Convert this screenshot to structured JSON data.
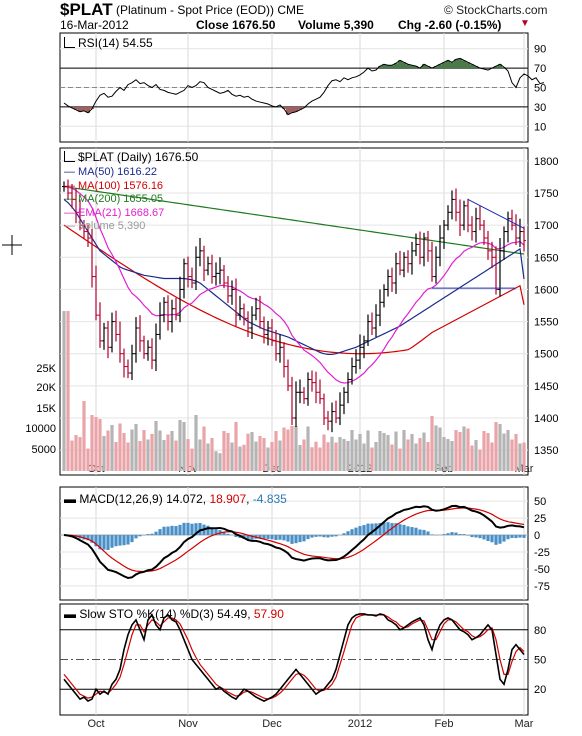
{
  "header": {
    "symbol": "$PLAT",
    "name": "(Platinum - Spot Price (EOD)) CME",
    "copyright": "© StockCharts.com",
    "date": "16-Mar-2012",
    "close_label": "Close 1676.50",
    "volume_label": "Volume 5,390",
    "chg_label": "Chg -2.60 (-0.15%)",
    "chg_arrow": "▼"
  },
  "colors": {
    "up_bar": "#000000",
    "down_bar": "#b0002a",
    "ma50": "#1a2a8c",
    "ma100": "#d40000",
    "ma200": "#1e7a1e",
    "ema21": "#e020d0",
    "vol_up": "#b4b4b4",
    "vol_down": "#e8a4a8",
    "macd_hist": "#4a90c8",
    "rsi_fill": "#4a7a4a",
    "rsi_low_fill": "#a06060",
    "trend": "#1a2ab4"
  },
  "x_axis": {
    "months": [
      "Oct",
      "Nov",
      "Dec",
      "2012",
      "Feb",
      "Mar"
    ],
    "month_start_index": [
      8,
      31,
      52,
      74,
      95,
      115
    ]
  },
  "chart_data": [
    {
      "type": "line",
      "panel": "rsi",
      "title": "RSI(14) 54.55",
      "ylim": [
        0,
        100
      ],
      "y_ticks": [
        10,
        30,
        50,
        70,
        90
      ],
      "reference_lines": [
        30,
        50,
        70
      ],
      "values": [
        34,
        31,
        29,
        27,
        25,
        26,
        24,
        28,
        36,
        42,
        44,
        40,
        41,
        46,
        50,
        47,
        53,
        55,
        58,
        54,
        55,
        52,
        50,
        53,
        48,
        47,
        45,
        44,
        43,
        45,
        47,
        52,
        50,
        52,
        56,
        55,
        50,
        48,
        46,
        44,
        45,
        47,
        43,
        41,
        42,
        40,
        41,
        38,
        36,
        35,
        34,
        33,
        31,
        30,
        32,
        28,
        22,
        24,
        25,
        27,
        29,
        33,
        36,
        38,
        40,
        45,
        52,
        57,
        58,
        56,
        60,
        58,
        60,
        61,
        63,
        66,
        70,
        67,
        68,
        72,
        74,
        73,
        73,
        75,
        78,
        76,
        74,
        73,
        72,
        70,
        74,
        72,
        70,
        72,
        74,
        76,
        78,
        76,
        79,
        80,
        78,
        76,
        74,
        72,
        70,
        69,
        68,
        70,
        72,
        74,
        71,
        67,
        55,
        50,
        60,
        64,
        62,
        58,
        60,
        54,
        55
      ]
    },
    {
      "type": "candlestick",
      "panel": "price",
      "title": "$PLAT (Daily) 1676.50",
      "ylim": [
        1330,
        1820
      ],
      "y_ticks": [
        1350,
        1400,
        1450,
        1500,
        1550,
        1600,
        1650,
        1700,
        1750,
        1800
      ],
      "legend": [
        {
          "label": "MA(50) 1616.22",
          "color": "#1a2a8c"
        },
        {
          "label": "MA(100) 1576.16",
          "color": "#d40000"
        },
        {
          "label": "MA(200) 1655.05",
          "color": "#1e7a1e"
        },
        {
          "label": "EMA(21) 1668.67",
          "color": "#e020d0"
        },
        {
          "label": "Volume 5,390",
          "color": "#999999"
        }
      ],
      "close": [
        1760,
        1750,
        1740,
        1720,
        1700,
        1690,
        1680,
        1620,
        1560,
        1520,
        1540,
        1510,
        1550,
        1530,
        1500,
        1480,
        1470,
        1500,
        1540,
        1520,
        1500,
        1510,
        1490,
        1530,
        1560,
        1580,
        1550,
        1570,
        1560,
        1600,
        1640,
        1620,
        1610,
        1650,
        1660,
        1630,
        1640,
        1620,
        1625,
        1630,
        1610,
        1590,
        1600,
        1560,
        1570,
        1555,
        1540,
        1560,
        1570,
        1550,
        1530,
        1540,
        1520,
        1500,
        1510,
        1480,
        1450,
        1400,
        1440,
        1440,
        1430,
        1460,
        1455,
        1440,
        1430,
        1400,
        1395,
        1410,
        1400,
        1420,
        1440,
        1460,
        1480,
        1490,
        1510,
        1520,
        1550,
        1540,
        1560,
        1580,
        1600,
        1620,
        1610,
        1640,
        1630,
        1650,
        1640,
        1660,
        1670,
        1650,
        1680,
        1660,
        1620,
        1650,
        1680,
        1700,
        1720,
        1740,
        1720,
        1700,
        1730,
        1700,
        1690,
        1710,
        1700,
        1680,
        1660,
        1650,
        1600,
        1660,
        1690,
        1710,
        1700,
        1680,
        1690,
        1676
      ],
      "ma50": [
        1740,
        1735,
        1728,
        1720,
        1710,
        1700,
        1690,
        1680,
        1670,
        1660,
        1655,
        1650,
        1645,
        1640,
        1635,
        1632,
        1630,
        1628,
        1626,
        1624,
        1622,
        1621,
        1620,
        1619,
        1618,
        1617,
        1617,
        1617,
        1617,
        1617,
        1617,
        1616,
        1615,
        1613,
        1610,
        1605,
        1600,
        1595,
        1590,
        1585,
        1580,
        1575,
        1570,
        1565,
        1560,
        1555,
        1550,
        1547,
        1544,
        1541,
        1538,
        1536,
        1534,
        1532,
        1530,
        1528,
        1526,
        1523,
        1520,
        1517,
        1514,
        1511,
        1508,
        1505,
        1502,
        1500,
        1499,
        1499,
        1500,
        1502,
        1504,
        1506,
        1508,
        1510,
        1513,
        1516,
        1519,
        1522,
        1525,
        1528,
        1531,
        1534,
        1537,
        1540,
        1543,
        1547,
        1551,
        1555,
        1559,
        1563,
        1567,
        1571,
        1575,
        1579,
        1583,
        1587,
        1591,
        1595,
        1599,
        1603,
        1607,
        1611,
        1615,
        1619,
        1623,
        1627,
        1631,
        1635,
        1639,
        1643,
        1647,
        1651,
        1655,
        1659,
        1663,
        1616
      ]
    }
  ],
  "price_panel_extra": {
    "volume_ticks": [
      "25K",
      "20K",
      "15K",
      "10000",
      "5000"
    ],
    "ma50_last": 1616.22,
    "ma100_last": 1576.16,
    "ma200_last": 1655.05,
    "ema21_last": 1668.67
  },
  "macd": {
    "title_prefix": "MACD(12,26,9)",
    "macd_value": "14.072",
    "signal_value": "18.907",
    "hist_value": "-4.835",
    "ylim": [
      -90,
      65
    ],
    "y_ticks": [
      50,
      25,
      0,
      -25,
      -50,
      -75
    ]
  },
  "stoch": {
    "title_prefix": "Slow STO %K(14) %D(3)",
    "k_value": "54.49",
    "d_value": "57.90",
    "ylim": [
      0,
      100
    ],
    "y_ticks": [
      20,
      50,
      80
    ],
    "k": [
      30,
      25,
      20,
      15,
      10,
      12,
      8,
      10,
      20,
      15,
      18,
      15,
      25,
      30,
      40,
      60,
      75,
      85,
      90,
      80,
      70,
      90,
      95,
      85,
      80,
      92,
      95,
      90,
      88,
      80,
      70,
      60,
      50,
      45,
      40,
      35,
      30,
      25,
      20,
      22,
      18,
      15,
      12,
      10,
      15,
      20,
      18,
      15,
      12,
      10,
      8,
      10,
      12,
      15,
      20,
      25,
      30,
      35,
      40,
      35,
      30,
      25,
      20,
      15,
      18,
      20,
      25,
      30,
      40,
      55,
      70,
      85,
      92,
      95,
      96,
      96,
      95,
      95,
      94,
      96,
      95,
      90,
      88,
      85,
      80,
      82,
      85,
      88,
      90,
      92,
      85,
      70,
      60,
      75,
      85,
      90,
      92,
      90,
      85,
      80,
      78,
      75,
      70,
      72,
      75,
      80,
      85,
      80,
      55,
      30,
      25,
      40,
      60,
      65,
      60,
      55
    ],
    "d": [
      35,
      30,
      25,
      20,
      15,
      13,
      11,
      12,
      15,
      18,
      17,
      16,
      20,
      25,
      32,
      45,
      60,
      75,
      85,
      85,
      78,
      85,
      90,
      88,
      84,
      88,
      92,
      92,
      90,
      86,
      78,
      70,
      60,
      52,
      45,
      40,
      35,
      30,
      25,
      22,
      20,
      17,
      15,
      13,
      14,
      17,
      18,
      17,
      15,
      13,
      11,
      10,
      11,
      13,
      16,
      20,
      25,
      30,
      35,
      36,
      34,
      30,
      25,
      20,
      18,
      19,
      21,
      25,
      32,
      45,
      58,
      72,
      85,
      92,
      94,
      95,
      95,
      95,
      95,
      95,
      95,
      93,
      90,
      88,
      84,
      82,
      83,
      86,
      88,
      90,
      89,
      80,
      70,
      70,
      78,
      86,
      90,
      90,
      88,
      84,
      80,
      78,
      74,
      72,
      73,
      76,
      80,
      82,
      70,
      50,
      35,
      35,
      48,
      58,
      62,
      58
    ]
  }
}
